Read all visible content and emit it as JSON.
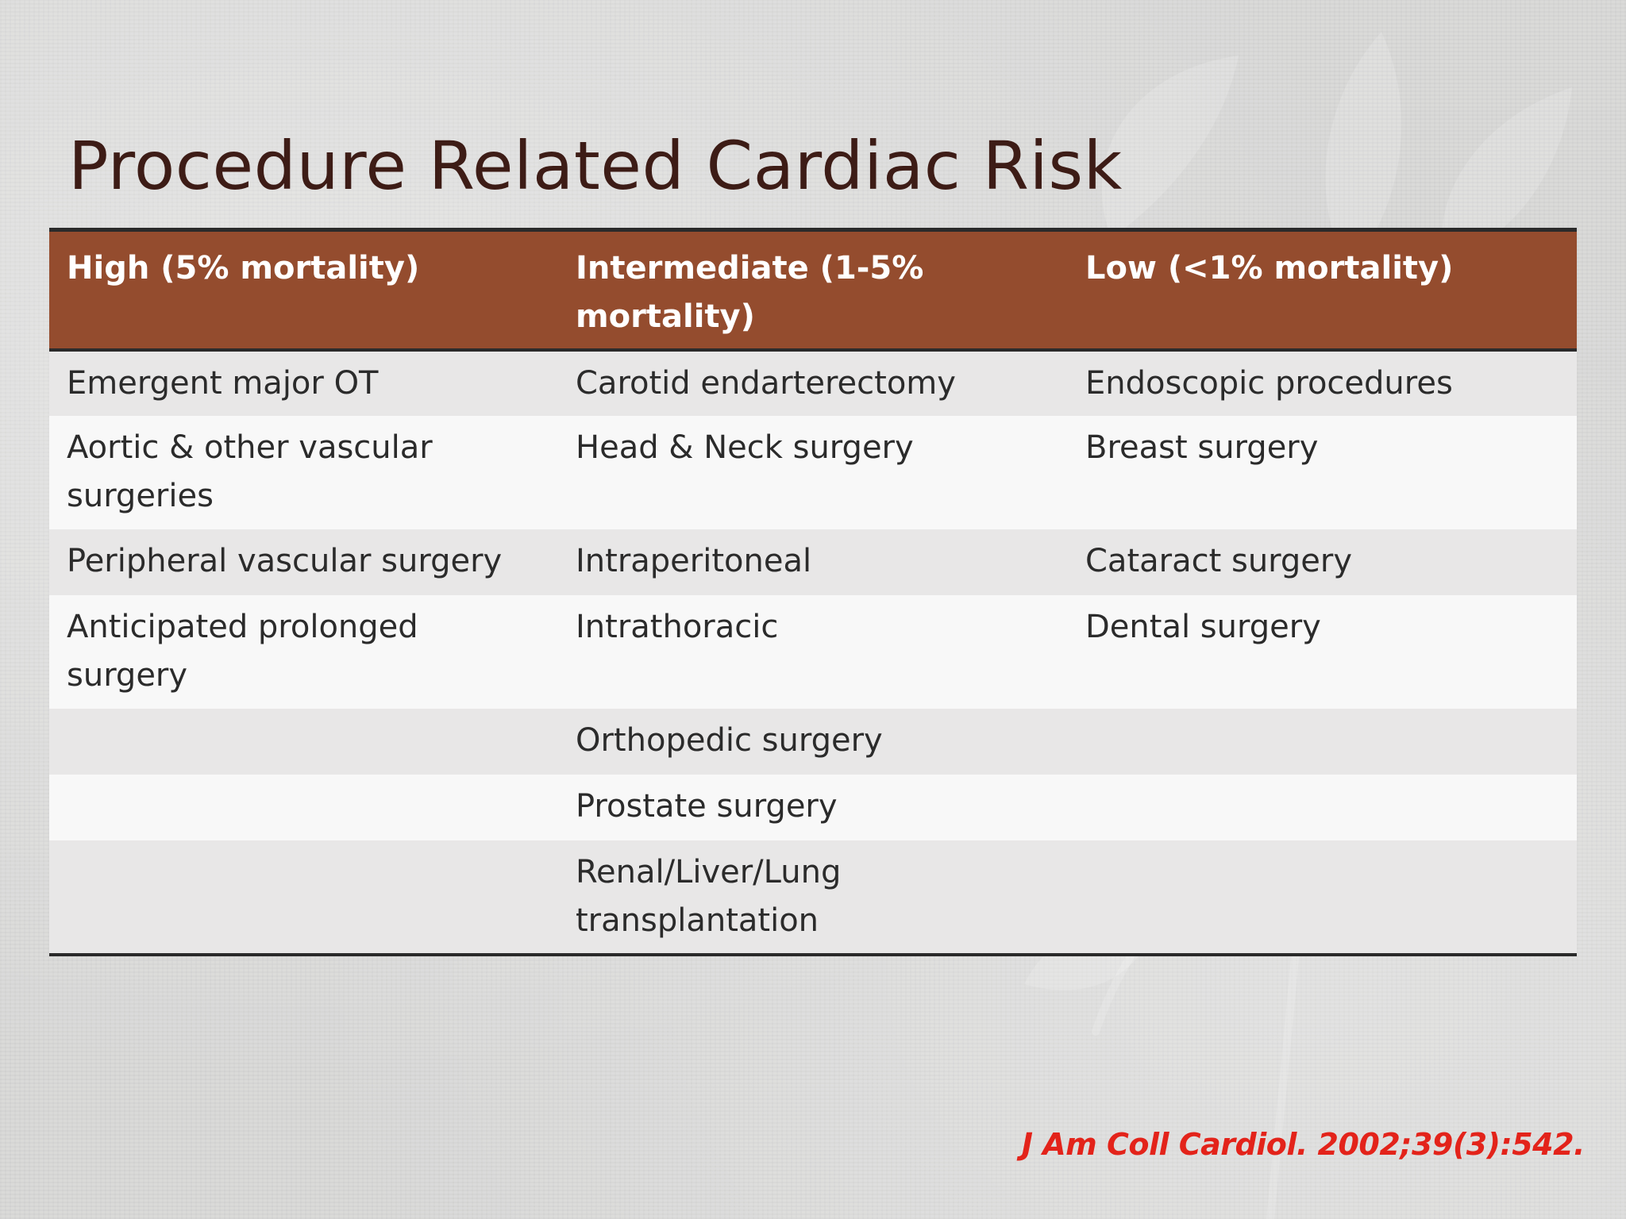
{
  "slide": {
    "title": "Procedure Related Cardiac Risk",
    "table": {
      "headers": [
        "High (5% mortality)",
        "Intermediate (1-5% mortality)",
        "Low (<1% mortality)"
      ],
      "rows": [
        [
          "Emergent major OT",
          "Carotid endarterectomy",
          "Endoscopic procedures"
        ],
        [
          "Aortic & other vascular surgeries",
          "Head & Neck surgery",
          "Breast surgery"
        ],
        [
          "Peripheral vascular surgery",
          "Intraperitoneal",
          "Cataract surgery"
        ],
        [
          "Anticipated prolonged surgery",
          "Intrathoracic",
          "Dental surgery"
        ],
        [
          "",
          "Orthopedic surgery",
          ""
        ],
        [
          "",
          "Prostate surgery",
          ""
        ],
        [
          "",
          "Renal/Liver/Lung transplantation",
          ""
        ]
      ]
    },
    "citation": "J Am Coll Cardiol. 2002;39(3):542.",
    "colors": {
      "header_bg": "#944c2e",
      "title_text": "#3d1c16",
      "citation_text": "#e3231a",
      "row_odd": "#e8e7e7",
      "row_even": "#f8f8f8"
    }
  }
}
